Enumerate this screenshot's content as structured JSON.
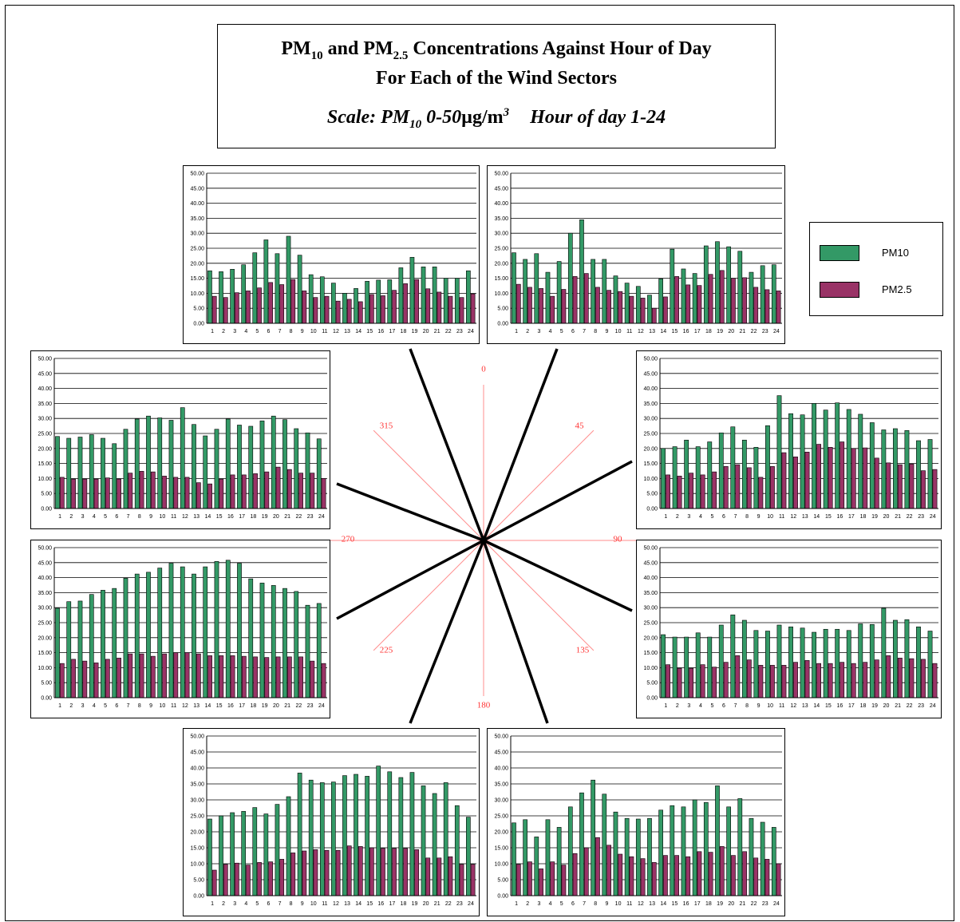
{
  "title": {
    "line1_a": "PM",
    "line1_sub1": "10",
    "line1_b": " and PM",
    "line1_sub2": "2.5",
    "line1_c": " Concentrations Against Hour of Day",
    "line2": "For Each of the Wind Sectors",
    "scale_a": "Scale:   PM",
    "scale_sub": "10",
    "scale_b": "  0-50",
    "scale_unit": "µg/m",
    "scale_sup": "3",
    "scale_c": "Hour of day 1-24"
  },
  "legend": {
    "items": [
      {
        "label": "PM10",
        "color": "#339966"
      },
      {
        "label": "PM2.5",
        "color": "#993366"
      }
    ]
  },
  "compass": {
    "color": "#ff3333",
    "labels": [
      "0",
      "45",
      "90",
      "135",
      "180",
      "225",
      "270",
      "315"
    ]
  },
  "chart_data": [
    {
      "sector": "N-NW (upper left)",
      "type": "bar",
      "categories": [
        "1",
        "2",
        "3",
        "4",
        "5",
        "6",
        "7",
        "8",
        "9",
        "10",
        "11",
        "12",
        "13",
        "14",
        "15",
        "16",
        "17",
        "18",
        "19",
        "20",
        "21",
        "22",
        "23",
        "24"
      ],
      "ylim": [
        0,
        50
      ],
      "yticks": [
        "0.00",
        "5.00",
        "10.00",
        "15.00",
        "20.00",
        "25.00",
        "30.00",
        "35.00",
        "40.00",
        "45.00",
        "50.00"
      ],
      "series": [
        {
          "name": "PM10",
          "values": [
            17.5,
            17.2,
            18,
            19.5,
            23.5,
            27.8,
            23.2,
            29,
            22.7,
            16.2,
            15.5,
            13.4,
            10,
            11.6,
            14,
            14.4,
            14.5,
            18.5,
            22,
            18.8,
            18.8,
            15,
            15,
            17.5
          ]
        },
        {
          "name": "PM2.5",
          "values": [
            9,
            8.6,
            10.2,
            10.8,
            11.8,
            13.6,
            12.9,
            14.6,
            10.8,
            8.6,
            9,
            7.4,
            8,
            7.2,
            9.6,
            9.2,
            11,
            13.2,
            14.6,
            11.5,
            10.4,
            9,
            8.6,
            9.8
          ]
        }
      ]
    },
    {
      "sector": "N-NE (upper right)",
      "type": "bar",
      "categories": [
        "1",
        "2",
        "3",
        "4",
        "5",
        "6",
        "7",
        "8",
        "9",
        "10",
        "11",
        "12",
        "13",
        "14",
        "15",
        "16",
        "17",
        "18",
        "19",
        "20",
        "21",
        "22",
        "23",
        "24"
      ],
      "ylim": [
        0,
        50
      ],
      "yticks": [
        "0.00",
        "5.00",
        "10.00",
        "15.00",
        "20.00",
        "25.00",
        "30.00",
        "35.00",
        "40.00",
        "45.00",
        "50.00"
      ],
      "series": [
        {
          "name": "PM10",
          "values": [
            23.5,
            21.3,
            23.2,
            17,
            20.6,
            30,
            34.5,
            21.3,
            21.3,
            15.8,
            13.4,
            12.3,
            9.4,
            14.8,
            24.7,
            18.1,
            16.6,
            25.8,
            27.2,
            25.5,
            24,
            17,
            19.2,
            19.5
          ]
        },
        {
          "name": "PM2.5",
          "values": [
            13,
            12,
            11.6,
            9,
            11.3,
            15.6,
            16.6,
            12,
            11,
            10.6,
            9,
            8.4,
            5,
            8.8,
            15.6,
            12.8,
            12.6,
            16.3,
            17.6,
            15,
            15.2,
            12,
            11.2,
            10.8
          ]
        }
      ]
    },
    {
      "sector": "W-NW (middle left upper)",
      "type": "bar",
      "categories": [
        "1",
        "2",
        "3",
        "4",
        "5",
        "6",
        "7",
        "8",
        "9",
        "10",
        "11",
        "12",
        "13",
        "14",
        "15",
        "16",
        "17",
        "18",
        "19",
        "20",
        "21",
        "22",
        "23",
        "24"
      ],
      "ylim": [
        0,
        50
      ],
      "yticks": [
        "0.00",
        "5.00",
        "10.00",
        "15.00",
        "20.00",
        "25.00",
        "30.00",
        "35.00",
        "40.00",
        "45.00",
        "50.00"
      ],
      "series": [
        {
          "name": "PM10",
          "values": [
            24,
            23.4,
            23.8,
            24.6,
            23.4,
            21.6,
            26.4,
            29.8,
            30.8,
            30.2,
            29.4,
            33.6,
            28,
            24.2,
            26.4,
            29.8,
            27.8,
            27.4,
            29.2,
            30.8,
            29.6,
            26.6,
            25.2,
            23.2
          ]
        },
        {
          "name": "PM2.5",
          "values": [
            10.4,
            9.8,
            9.8,
            9.8,
            10.2,
            9.8,
            11.8,
            12.4,
            12.2,
            10.8,
            10.4,
            10.4,
            8.6,
            8.2,
            9.8,
            11.2,
            11.2,
            11.6,
            12.2,
            13.8,
            13,
            11.8,
            11.8,
            10
          ]
        }
      ]
    },
    {
      "sector": "E-NE (middle right upper)",
      "type": "bar",
      "categories": [
        "1",
        "2",
        "3",
        "4",
        "5",
        "6",
        "7",
        "8",
        "9",
        "10",
        "11",
        "12",
        "13",
        "14",
        "15",
        "16",
        "17",
        "18",
        "19",
        "20",
        "21",
        "22",
        "23",
        "24"
      ],
      "ylim": [
        0,
        50
      ],
      "yticks": [
        "0.00",
        "5.00",
        "10.00",
        "15.00",
        "20.00",
        "25.00",
        "30.00",
        "35.00",
        "40.00",
        "45.00",
        "50.00"
      ],
      "series": [
        {
          "name": "PM10",
          "values": [
            20,
            20.6,
            22.8,
            20.6,
            22.2,
            25.2,
            27.2,
            22.8,
            20.4,
            27.6,
            37.6,
            31.6,
            31.2,
            35,
            32.8,
            35.2,
            33,
            31.4,
            28.6,
            26.2,
            26.6,
            26,
            22.6,
            23
          ]
        },
        {
          "name": "PM2.5",
          "values": [
            11.2,
            10.8,
            11.8,
            11.2,
            12.2,
            14,
            14.6,
            13.6,
            10.4,
            14,
            18.6,
            17.2,
            18.8,
            21.4,
            20.4,
            22.2,
            20,
            20.2,
            16.8,
            15.2,
            14.6,
            14.8,
            12.6,
            13
          ]
        }
      ]
    },
    {
      "sector": "W-SW (middle left lower)",
      "type": "bar",
      "categories": [
        "1",
        "2",
        "3",
        "4",
        "5",
        "6",
        "7",
        "8",
        "9",
        "10",
        "11",
        "12",
        "13",
        "14",
        "15",
        "16",
        "17",
        "18",
        "19",
        "20",
        "21",
        "22",
        "23",
        "24"
      ],
      "ylim": [
        0,
        50
      ],
      "yticks": [
        "0.00",
        "5.00",
        "10.00",
        "15.00",
        "20.00",
        "25.00",
        "30.00",
        "35.00",
        "40.00",
        "45.00",
        "50.00"
      ],
      "series": [
        {
          "name": "PM10",
          "values": [
            29.8,
            32,
            32.2,
            34.4,
            35.8,
            36.4,
            39.8,
            41.2,
            41.8,
            43.2,
            44.8,
            43.6,
            41.2,
            43.6,
            45.4,
            45.8,
            44.8,
            39.6,
            38.2,
            37.4,
            36.4,
            35.4,
            30.8,
            31.4
          ]
        },
        {
          "name": "PM2.5",
          "values": [
            11.4,
            12.8,
            12.2,
            11.6,
            12.8,
            13.2,
            14.6,
            14.6,
            13.8,
            14.6,
            15,
            15,
            14.6,
            14,
            14,
            14,
            13.8,
            13.6,
            13.4,
            13.6,
            13.6,
            13.6,
            12.2,
            11.4
          ]
        }
      ]
    },
    {
      "sector": "E-SE (middle right lower)",
      "type": "bar",
      "categories": [
        "1",
        "2",
        "3",
        "4",
        "5",
        "6",
        "7",
        "8",
        "9",
        "10",
        "11",
        "12",
        "13",
        "14",
        "15",
        "16",
        "17",
        "18",
        "19",
        "20",
        "21",
        "22",
        "23",
        "24"
      ],
      "ylim": [
        0,
        50
      ],
      "yticks": [
        "0.00",
        "5.00",
        "10.00",
        "15.00",
        "20.00",
        "25.00",
        "30.00",
        "35.00",
        "40.00",
        "45.00",
        "50.00"
      ],
      "series": [
        {
          "name": "PM10",
          "values": [
            21,
            20.2,
            20.2,
            21.6,
            20.2,
            24.2,
            27.6,
            25.8,
            22.4,
            22.2,
            24.2,
            23.6,
            23.2,
            21.8,
            22.8,
            22.8,
            22.4,
            24.6,
            24.4,
            29.8,
            25.8,
            26,
            23.6,
            22.2
          ]
        },
        {
          "name": "PM2.5",
          "values": [
            11,
            9.8,
            9.8,
            11,
            10.2,
            11.8,
            14,
            12.6,
            10.8,
            10.8,
            10.8,
            11.8,
            12.4,
            11.4,
            11.4,
            11.8,
            11.4,
            11.8,
            12.6,
            14,
            13.2,
            13,
            12.8,
            11.4
          ]
        }
      ]
    },
    {
      "sector": "S-SW (lower left)",
      "type": "bar",
      "categories": [
        "1",
        "2",
        "3",
        "4",
        "5",
        "6",
        "7",
        "8",
        "9",
        "10",
        "11",
        "12",
        "13",
        "14",
        "15",
        "16",
        "17",
        "18",
        "19",
        "20",
        "21",
        "22",
        "23",
        "24"
      ],
      "ylim": [
        0,
        50
      ],
      "yticks": [
        "0.00",
        "5.00",
        "10.00",
        "15.00",
        "20.00",
        "25.00",
        "30.00",
        "35.00",
        "40.00",
        "45.00",
        "50.00"
      ],
      "series": [
        {
          "name": "PM10",
          "values": [
            24,
            25,
            26,
            26.4,
            27.6,
            25.6,
            28.6,
            31,
            38.4,
            36.2,
            35.4,
            35.6,
            37.6,
            38,
            37.4,
            40.6,
            38.8,
            37,
            38.6,
            34.4,
            32,
            35.4,
            28.2,
            24.6
          ]
        },
        {
          "name": "PM2.5",
          "values": [
            8,
            9.8,
            10.2,
            9.6,
            10.4,
            10.6,
            11.4,
            13.4,
            14,
            14.4,
            14.2,
            14.2,
            15.6,
            15.4,
            15,
            14.8,
            14.8,
            14.8,
            14.4,
            11.8,
            11.8,
            12.2,
            9.8,
            9.8
          ]
        }
      ]
    },
    {
      "sector": "S-SE (lower right)",
      "type": "bar",
      "categories": [
        "1",
        "2",
        "3",
        "4",
        "5",
        "6",
        "7",
        "8",
        "9",
        "10",
        "11",
        "12",
        "13",
        "14",
        "15",
        "16",
        "17",
        "18",
        "19",
        "20",
        "21",
        "22",
        "23",
        "24"
      ],
      "ylim": [
        0,
        50
      ],
      "yticks": [
        "0.00",
        "5.00",
        "10.00",
        "15.00",
        "20.00",
        "25.00",
        "30.00",
        "35.00",
        "40.00",
        "45.00",
        "50.00"
      ],
      "series": [
        {
          "name": "PM10",
          "values": [
            22.8,
            23.8,
            18.4,
            23.8,
            21.4,
            27.8,
            32.2,
            36.2,
            31.8,
            26.2,
            24.2,
            24,
            24.2,
            26.8,
            28.2,
            27.8,
            30,
            29.2,
            34.4,
            27.8,
            30.4,
            24.2,
            23,
            21.4
          ]
        },
        {
          "name": "PM2.5",
          "values": [
            9.8,
            10.6,
            8.4,
            10.6,
            9.6,
            13.2,
            15,
            18.2,
            15.8,
            13,
            12.2,
            11.6,
            10.4,
            12.6,
            12.6,
            12.2,
            13.8,
            13.6,
            15.4,
            12.6,
            13.8,
            11.8,
            11.4,
            10
          ]
        }
      ]
    }
  ]
}
